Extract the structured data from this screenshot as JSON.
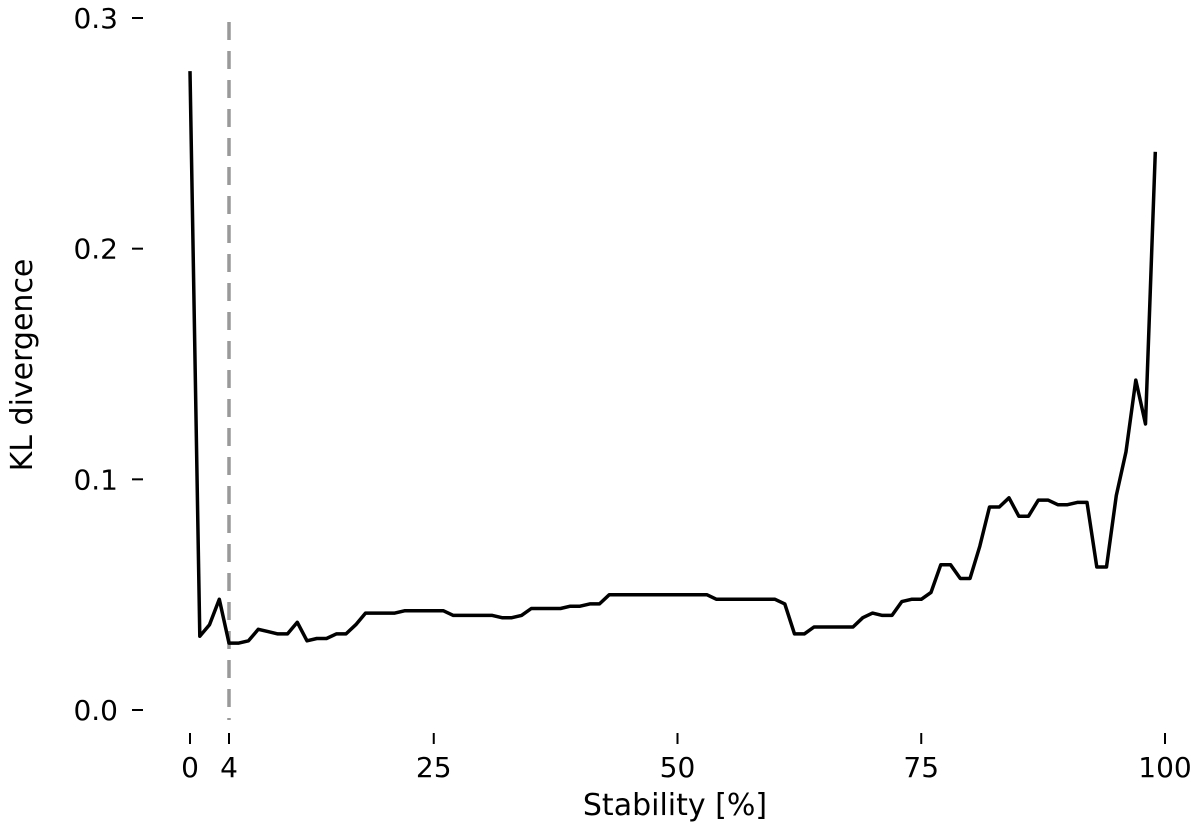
{
  "chart_data": {
    "type": "line",
    "title": "",
    "xlabel": "Stability [%]",
    "ylabel": "KL divergence",
    "xlim": [
      0,
      100
    ],
    "ylim": [
      0.0,
      0.3
    ],
    "x_ticks": [
      0,
      4,
      25,
      50,
      75,
      100
    ],
    "y_ticks": [
      0.0,
      0.1,
      0.2,
      0.3
    ],
    "x_tick_labels": [
      "0",
      "4",
      "25",
      "50",
      "75",
      "100"
    ],
    "y_tick_labels": [
      "0.0",
      "0.1",
      "0.2",
      "0.3"
    ],
    "grid": false,
    "reference_line": {
      "orientation": "vertical",
      "x": 4,
      "style": "dashed",
      "color": "#999999"
    },
    "series": [
      {
        "color": "#000000",
        "x": [
          0,
          1,
          2,
          3,
          4,
          5,
          6,
          7,
          8,
          9,
          10,
          11,
          12,
          13,
          14,
          15,
          16,
          17,
          18,
          19,
          20,
          21,
          22,
          23,
          24,
          25,
          26,
          27,
          28,
          29,
          30,
          31,
          32,
          33,
          34,
          35,
          36,
          37,
          38,
          39,
          40,
          41,
          42,
          43,
          44,
          45,
          46,
          47,
          48,
          49,
          50,
          51,
          52,
          53,
          54,
          55,
          56,
          57,
          58,
          59,
          60,
          61,
          62,
          63,
          64,
          65,
          66,
          67,
          68,
          69,
          70,
          71,
          72,
          73,
          74,
          75,
          76,
          77,
          78,
          79,
          80,
          81,
          82,
          83,
          84,
          85,
          86,
          87,
          88,
          89,
          90,
          91,
          92,
          93,
          94,
          95,
          96,
          97,
          98,
          99
        ],
        "y": [
          0.277,
          0.032,
          0.037,
          0.048,
          0.029,
          0.029,
          0.03,
          0.035,
          0.034,
          0.033,
          0.033,
          0.038,
          0.03,
          0.031,
          0.031,
          0.033,
          0.033,
          0.037,
          0.042,
          0.042,
          0.042,
          0.042,
          0.043,
          0.043,
          0.043,
          0.043,
          0.043,
          0.041,
          0.041,
          0.041,
          0.041,
          0.041,
          0.04,
          0.04,
          0.041,
          0.044,
          0.044,
          0.044,
          0.044,
          0.045,
          0.045,
          0.046,
          0.046,
          0.05,
          0.05,
          0.05,
          0.05,
          0.05,
          0.05,
          0.05,
          0.05,
          0.05,
          0.05,
          0.05,
          0.048,
          0.048,
          0.048,
          0.048,
          0.048,
          0.048,
          0.048,
          0.046,
          0.033,
          0.033,
          0.036,
          0.036,
          0.036,
          0.036,
          0.036,
          0.04,
          0.042,
          0.041,
          0.041,
          0.047,
          0.048,
          0.048,
          0.051,
          0.063,
          0.063,
          0.057,
          0.057,
          0.071,
          0.088,
          0.088,
          0.092,
          0.084,
          0.084,
          0.091,
          0.091,
          0.089,
          0.089,
          0.09,
          0.09,
          0.062,
          0.062,
          0.093,
          0.112,
          0.143,
          0.124,
          0.242
        ]
      }
    ]
  }
}
